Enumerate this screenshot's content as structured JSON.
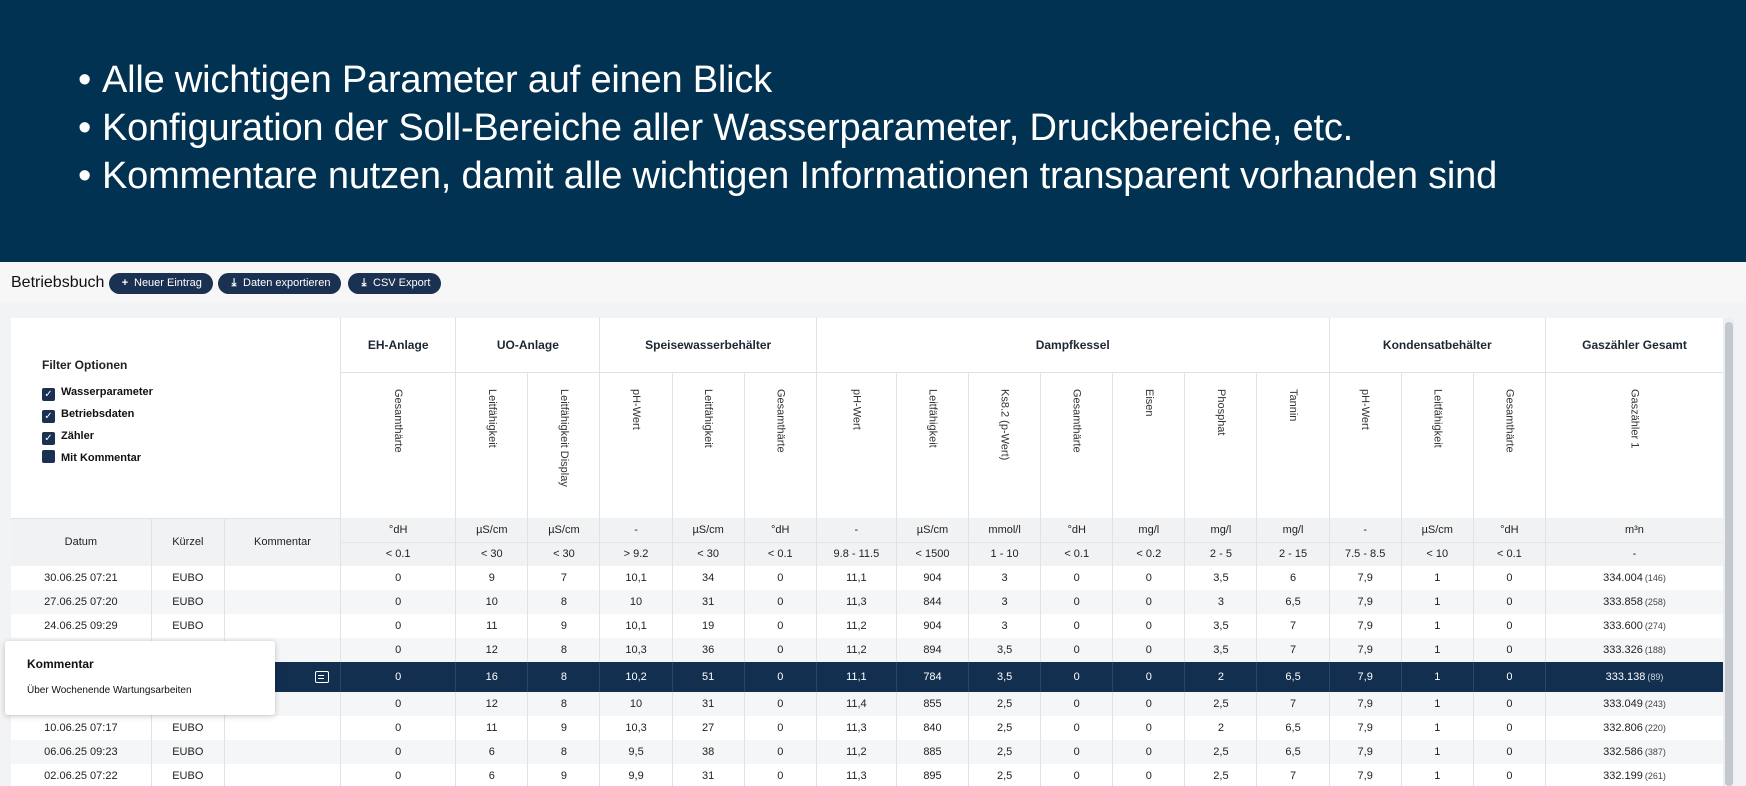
{
  "banner": {
    "bullets": [
      "Alle wichtigen Parameter auf einen Blick",
      "Konfiguration der Soll-Bereiche aller Wasserparameter, Druckbereiche, etc.",
      "Kommentare nutzen, damit alle wichtigen Informationen transparent vorhanden sind"
    ],
    "bullet_char": "•"
  },
  "toolbar": {
    "title": "Betriebsbuch",
    "new_entry": "Neuer Eintrag",
    "export_data": "Daten exportieren",
    "csv_export": "CSV Export"
  },
  "filter": {
    "title": "Filter Optionen",
    "options": [
      {
        "label": "Wasserparameter",
        "checked": true
      },
      {
        "label": "Betriebsdaten",
        "checked": true
      },
      {
        "label": "Zähler",
        "checked": true
      },
      {
        "label": "Mit Kommentar",
        "checked": false
      }
    ]
  },
  "table": {
    "fixed_headers": {
      "datum": "Datum",
      "kuerzel": "Kürzel",
      "kommentar": "Kommentar"
    },
    "groups": [
      {
        "label": "EH-Anlage"
      },
      {
        "label": "UO-Anlage"
      },
      {
        "label": "Speisewasserbehälter"
      },
      {
        "label": "Dampfkessel"
      },
      {
        "label": "Kondensatbehälter"
      },
      {
        "label": "Gaszähler Gesamt"
      }
    ],
    "params": [
      "Gesamthärte",
      "Leitfähigkeit",
      "Leitfähigkeit Display",
      "pH-Wert",
      "Leitfähigkeit",
      "Gesamthärte",
      "pH-Wert",
      "Leitfähigkeit",
      "Ks8.2 (p-Wert)",
      "Gesamthärte",
      "Eisen",
      "Phosphat",
      "Tannin",
      "pH-Wert",
      "Leitfähigkeit",
      "Gesamthärte",
      "Gaszähler 1"
    ],
    "units": [
      "°dH",
      "µS/cm",
      "µS/cm",
      "-",
      "µS/cm",
      "°dH",
      "-",
      "µS/cm",
      "mmol/l",
      "°dH",
      "mg/l",
      "mg/l",
      "mg/l",
      "-",
      "µS/cm",
      "°dH",
      "m³n"
    ],
    "ranges": [
      "< 0.1",
      "< 30",
      "< 30",
      "> 9.2",
      "< 30",
      "< 0.1",
      "9.8 - 11.5",
      "< 1500",
      "1 - 10",
      "< 0.1",
      "< 0.2",
      "2 - 5",
      "2 - 15",
      "7.5 - 8.5",
      "< 10",
      "< 0.1",
      "-"
    ],
    "rows": [
      {
        "datum": "30.06.25 07:21",
        "kuerzel": "EUBO",
        "kommentar": "",
        "v": [
          "0",
          "9",
          "7",
          "10,1",
          "34",
          "0",
          "11,1",
          "904",
          "3",
          "0",
          "0",
          "3,5",
          "6",
          "7,9",
          "1",
          "0"
        ],
        "gz": "334.004",
        "gz_diff": "(146)"
      },
      {
        "datum": "27.06.25 07:20",
        "kuerzel": "EUBO",
        "kommentar": "",
        "v": [
          "0",
          "10",
          "8",
          "10",
          "31",
          "0",
          "11,3",
          "844",
          "3",
          "0",
          "0",
          "3",
          "6,5",
          "7,9",
          "1",
          "0"
        ],
        "gz": "333.858",
        "gz_diff": "(258)"
      },
      {
        "datum": "24.06.25 09:29",
        "kuerzel": "EUBO",
        "kommentar": "",
        "v": [
          "0",
          "11",
          "9",
          "10,1",
          "19",
          "0",
          "11,2",
          "904",
          "3",
          "0",
          "0",
          "3,5",
          "7",
          "7,9",
          "1",
          "0"
        ],
        "gz": "333.600",
        "gz_diff": "(274)"
      },
      {
        "datum": "",
        "kuerzel": "",
        "kommentar": "",
        "v": [
          "0",
          "12",
          "8",
          "10,3",
          "36",
          "0",
          "11,2",
          "894",
          "3,5",
          "0",
          "0",
          "3,5",
          "7",
          "7,9",
          "1",
          "0"
        ],
        "gz": "333.326",
        "gz_diff": "(188)"
      },
      {
        "datum": "",
        "kuerzel": "",
        "kommentar": "",
        "selected": true,
        "has_comment": true,
        "v": [
          "0",
          "16",
          "8",
          "10,2",
          "51",
          "0",
          "11,1",
          "784",
          "3,5",
          "0",
          "0",
          "2",
          "6,5",
          "7,9",
          "1",
          "0"
        ],
        "gz": "333.138",
        "gz_diff": "(89)"
      },
      {
        "datum": "",
        "kuerzel": "",
        "kommentar": "",
        "v": [
          "0",
          "12",
          "8",
          "10",
          "31",
          "0",
          "11,4",
          "855",
          "2,5",
          "0",
          "0",
          "2,5",
          "7",
          "7,9",
          "1",
          "0"
        ],
        "gz": "333.049",
        "gz_diff": "(243)"
      },
      {
        "datum": "10.06.25 07:17",
        "kuerzel": "EUBO",
        "kommentar": "",
        "v": [
          "0",
          "11",
          "9",
          "10,3",
          "27",
          "0",
          "11,3",
          "840",
          "2,5",
          "0",
          "0",
          "2",
          "6,5",
          "7,9",
          "1",
          "0"
        ],
        "gz": "332.806",
        "gz_diff": "(220)"
      },
      {
        "datum": "06.06.25 09:23",
        "kuerzel": "EUBO",
        "kommentar": "",
        "v": [
          "0",
          "6",
          "8",
          "9,5",
          "38",
          "0",
          "11,2",
          "885",
          "2,5",
          "0",
          "0",
          "2,5",
          "6,5",
          "7,9",
          "1",
          "0"
        ],
        "gz": "332.586",
        "gz_diff": "(387)"
      },
      {
        "datum": "02.06.25 07:22",
        "kuerzel": "EUBO",
        "kommentar": "",
        "v": [
          "0",
          "6",
          "9",
          "9,9",
          "31",
          "0",
          "11,3",
          "895",
          "2,5",
          "0",
          "0",
          "2,5",
          "7",
          "7,9",
          "1",
          "0"
        ],
        "gz": "332.199",
        "gz_diff": "(261)"
      }
    ]
  },
  "tooltip": {
    "title": "Kommentar",
    "text": "Über Wochenende Wartungsarbeiten"
  },
  "colors": {
    "banner_bg": "#013251",
    "button_bg": "#1a3152",
    "selected_row_bg": "#122f4f"
  }
}
